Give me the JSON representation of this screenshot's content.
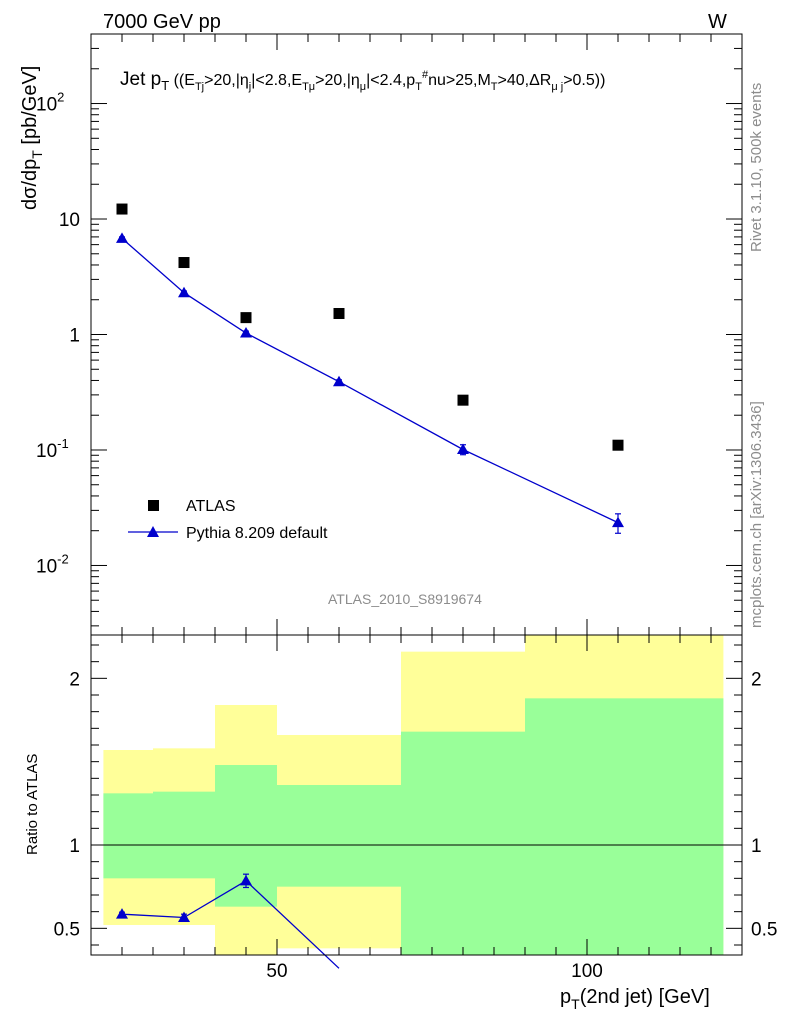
{
  "header": {
    "left": "7000 GeV pp",
    "right": "W"
  },
  "side": {
    "rivet": "Rivet 3.1.10,  500k events",
    "mcplots": "mcplots.cern.ch [arXiv:1306.3436]"
  },
  "chart_data": [
    {
      "type": "scatter",
      "title": "Jet p_T ((E_Tj>20,|η_j|<2.8,E_Tμ>20,|η_μ|<2.4,p_T^#nu>25,M_T>40,ΔR_μj>0.5))",
      "ylabel": "dσ/dp_T [pb/GeV]",
      "yscale": "log",
      "ylim": [
        0.0025,
        400
      ],
      "xlim": [
        20,
        125
      ],
      "analysis_label": "ATLAS_2010_S8919674",
      "legend_position": "bottom-left",
      "legend": [
        "ATLAS",
        "Pythia 8.209 default"
      ],
      "yticks": [
        "10^-2",
        "10^-1",
        "1",
        "10",
        "10^2"
      ],
      "series": [
        {
          "name": "ATLAS",
          "marker": "square",
          "color": "#000000",
          "x": [
            25,
            35,
            45,
            60,
            80,
            105
          ],
          "y": [
            12.2,
            4.2,
            1.4,
            1.52,
            0.27,
            0.11
          ]
        },
        {
          "name": "Pythia 8.209 default",
          "marker": "triangle",
          "color": "#0000cc",
          "line": true,
          "x": [
            25,
            35,
            45,
            60,
            80,
            105
          ],
          "y": [
            6.8,
            2.3,
            1.03,
            0.39,
            0.101,
            0.0235
          ],
          "yerr": [
            0.2,
            0.08,
            0.04,
            0.015,
            0.01,
            0.0045
          ]
        }
      ]
    },
    {
      "type": "line",
      "ylabel": "Ratio to ATLAS",
      "xlabel": "p_T(2nd jet) [GeV]",
      "xlim": [
        20,
        125
      ],
      "ylim": [
        0.34,
        2.26
      ],
      "xticks": [
        50,
        100
      ],
      "yticks": [
        0.5,
        1,
        2
      ],
      "bands": {
        "edges": [
          22,
          30,
          40,
          50,
          70,
          90,
          122
        ],
        "yellow_low": [
          0.52,
          0.52,
          0.34,
          0.38,
          0.34,
          0.34
        ],
        "yellow_high": [
          1.57,
          1.58,
          1.84,
          1.66,
          2.16,
          2.26
        ],
        "green_low": [
          0.8,
          0.8,
          0.63,
          0.75,
          0.34,
          0.34
        ],
        "green_high": [
          1.31,
          1.32,
          1.48,
          1.36,
          1.68,
          1.88
        ]
      },
      "series": [
        {
          "name": "Pythia 8.209 default",
          "color": "#0000cc",
          "x": [
            25,
            35,
            45,
            60
          ],
          "y": [
            0.585,
            0.565,
            0.785,
            0.26
          ],
          "yerr": [
            0.012,
            0.02,
            0.04,
            0
          ]
        }
      ]
    }
  ]
}
